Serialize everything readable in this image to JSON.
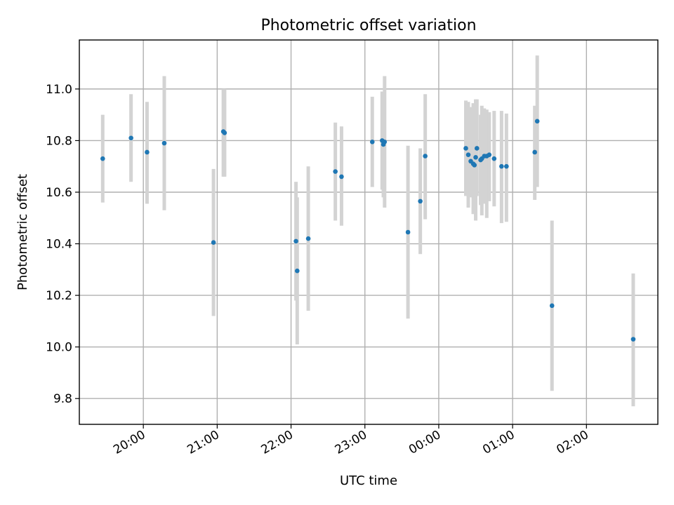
{
  "chart_data": {
    "type": "scatter",
    "title": "Photometric offset variation",
    "xlabel": "UTC time",
    "ylabel": "Photometric offset",
    "xlim": [
      "19:08",
      "02:58"
    ],
    "ylim": [
      9.7,
      11.19
    ],
    "x_ticks": [
      "20:00",
      "21:00",
      "22:00",
      "23:00",
      "00:00",
      "01:00",
      "02:00"
    ],
    "y_ticks": [
      9.8,
      10.0,
      10.2,
      10.4,
      10.6,
      10.8,
      11.0
    ],
    "grid": true,
    "colors": {
      "point": "#1f77b4",
      "errorbar": "#d3d3d3"
    },
    "points": [
      {
        "time": "19:27",
        "y": 10.73,
        "ylo": 10.56,
        "yhi": 10.9
      },
      {
        "time": "19:50",
        "y": 10.81,
        "ylo": 10.64,
        "yhi": 10.98
      },
      {
        "time": "20:03",
        "y": 10.755,
        "ylo": 10.555,
        "yhi": 10.95
      },
      {
        "time": "20:17",
        "y": 10.79,
        "ylo": 10.53,
        "yhi": 11.05
      },
      {
        "time": "20:57",
        "y": 10.405,
        "ylo": 10.12,
        "yhi": 10.69
      },
      {
        "time": "21:05",
        "y": 10.835,
        "ylo": 10.66,
        "yhi": 11.0
      },
      {
        "time": "21:06",
        "y": 10.83,
        "ylo": 10.66,
        "yhi": 11.0
      },
      {
        "time": "22:04",
        "y": 10.41,
        "ylo": 10.18,
        "yhi": 10.64
      },
      {
        "time": "22:05",
        "y": 10.295,
        "ylo": 10.01,
        "yhi": 10.58
      },
      {
        "time": "22:14",
        "y": 10.42,
        "ylo": 10.14,
        "yhi": 10.7
      },
      {
        "time": "22:36",
        "y": 10.68,
        "ylo": 10.49,
        "yhi": 10.87
      },
      {
        "time": "22:41",
        "y": 10.66,
        "ylo": 10.47,
        "yhi": 10.855
      },
      {
        "time": "23:06",
        "y": 10.795,
        "ylo": 10.62,
        "yhi": 10.97
      },
      {
        "time": "23:14",
        "y": 10.8,
        "ylo": 10.61,
        "yhi": 10.99
      },
      {
        "time": "23:15",
        "y": 10.785,
        "ylo": 10.58,
        "yhi": 10.99
      },
      {
        "time": "23:16",
        "y": 10.795,
        "ylo": 10.54,
        "yhi": 11.05
      },
      {
        "time": "23:35",
        "y": 10.445,
        "ylo": 10.11,
        "yhi": 10.78
      },
      {
        "time": "23:45",
        "y": 10.565,
        "ylo": 10.36,
        "yhi": 10.77
      },
      {
        "time": "23:49",
        "y": 10.74,
        "ylo": 10.495,
        "yhi": 10.98
      },
      {
        "time": "00:22",
        "y": 10.77,
        "ylo": 10.585,
        "yhi": 10.955
      },
      {
        "time": "00:24",
        "y": 10.745,
        "ylo": 10.54,
        "yhi": 10.95
      },
      {
        "time": "00:26",
        "y": 10.72,
        "ylo": 10.58,
        "yhi": 10.93
      },
      {
        "time": "00:28",
        "y": 10.71,
        "ylo": 10.515,
        "yhi": 10.945
      },
      {
        "time": "00:29",
        "y": 10.705,
        "ylo": 10.54,
        "yhi": 10.92
      },
      {
        "time": "00:30",
        "y": 10.735,
        "ylo": 10.49,
        "yhi": 10.96
      },
      {
        "time": "00:31",
        "y": 10.77,
        "ylo": 10.585,
        "yhi": 10.96
      },
      {
        "time": "00:34",
        "y": 10.725,
        "ylo": 10.55,
        "yhi": 10.9
      },
      {
        "time": "00:35",
        "y": 10.73,
        "ylo": 10.51,
        "yhi": 10.935
      },
      {
        "time": "00:37",
        "y": 10.74,
        "ylo": 10.555,
        "yhi": 10.925
      },
      {
        "time": "00:39",
        "y": 10.74,
        "ylo": 10.5,
        "yhi": 10.92
      },
      {
        "time": "00:41",
        "y": 10.745,
        "ylo": 10.565,
        "yhi": 10.91
      },
      {
        "time": "00:45",
        "y": 10.73,
        "ylo": 10.545,
        "yhi": 10.915
      },
      {
        "time": "00:51",
        "y": 10.7,
        "ylo": 10.48,
        "yhi": 10.915
      },
      {
        "time": "00:55",
        "y": 10.7,
        "ylo": 10.485,
        "yhi": 10.905
      },
      {
        "time": "01:18",
        "y": 10.755,
        "ylo": 10.57,
        "yhi": 10.935
      },
      {
        "time": "01:20",
        "y": 10.875,
        "ylo": 10.62,
        "yhi": 11.13
      },
      {
        "time": "01:32",
        "y": 10.16,
        "ylo": 9.83,
        "yhi": 10.49
      },
      {
        "time": "02:38",
        "y": 10.03,
        "ylo": 9.77,
        "yhi": 10.285
      }
    ]
  }
}
